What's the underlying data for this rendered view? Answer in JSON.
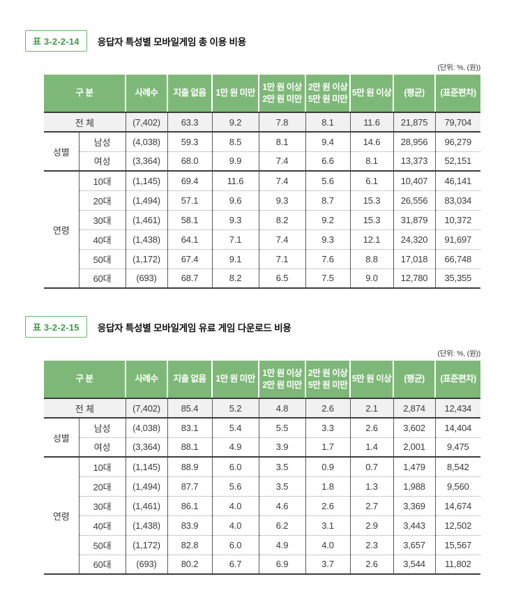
{
  "colors": {
    "header_green": "#7eb878",
    "header_text": "#ffffff",
    "total_bg": "#f1f1f1",
    "tag_border": "#6cb06c",
    "tag_text": "#3f9a48",
    "dark_line": "#3c3c3c",
    "grid_line": "#5a5a5a",
    "dotted_line": "#9a9a9a",
    "body_text": "#3a3a3a",
    "title_text": "#111111"
  },
  "unit_note": "(단위: %, (원))",
  "table_header": {
    "gubun": "구 분",
    "cols": [
      "사례수",
      "지출 없음",
      "1만 원 미만",
      "1만 원 이상\n2만 원 미만",
      "2만 원 이상\n5만 원 미만",
      "5만 원 이상",
      "(평균)",
      "(표준편차)"
    ]
  },
  "tables": [
    {
      "tag": "표 3-2-2-14",
      "title": "응답자 특성별 모바일게임 총 이용 비용",
      "sections": [
        {
          "group": "",
          "rows": [
            {
              "label": "전 체",
              "total": true,
              "cells": [
                "(7,402)",
                "63.3",
                "9.2",
                "7.8",
                "8.1",
                "11.6",
                "21,875",
                "79,704"
              ]
            }
          ]
        },
        {
          "group": "성별",
          "rows": [
            {
              "label": "남성",
              "cells": [
                "(4,038)",
                "59.3",
                "8.5",
                "8.1",
                "9.4",
                "14.6",
                "28,956",
                "96,279"
              ]
            },
            {
              "label": "여성",
              "cells": [
                "(3,364)",
                "68.0",
                "9.9",
                "7.4",
                "6.6",
                "8.1",
                "13,373",
                "52,151"
              ]
            }
          ]
        },
        {
          "group": "연령",
          "rows": [
            {
              "label": "10대",
              "cells": [
                "(1,145)",
                "69.4",
                "11.6",
                "7.4",
                "5.6",
                "6.1",
                "10,407",
                "46,141"
              ]
            },
            {
              "label": "20대",
              "cells": [
                "(1,494)",
                "57.1",
                "9.6",
                "9.3",
                "8.7",
                "15.3",
                "26,556",
                "83,034"
              ]
            },
            {
              "label": "30대",
              "cells": [
                "(1,461)",
                "58.1",
                "9.3",
                "8.2",
                "9.2",
                "15.3",
                "31,879",
                "10,372"
              ]
            },
            {
              "label": "40대",
              "cells": [
                "(1,438)",
                "64.1",
                "7.1",
                "7.4",
                "9.3",
                "12.1",
                "24,320",
                "91,697"
              ]
            },
            {
              "label": "50대",
              "cells": [
                "(1,172)",
                "67.4",
                "9.1",
                "7.1",
                "7.6",
                "8.8",
                "17,018",
                "66,748"
              ]
            },
            {
              "label": "60대",
              "cells": [
                "(693)",
                "68.7",
                "8.2",
                "6.5",
                "7.5",
                "9.0",
                "12,780",
                "35,355"
              ]
            }
          ]
        }
      ]
    },
    {
      "tag": "표 3-2-2-15",
      "title": "응답자 특성별 모바일게임 유료 게임 다운로드 비용",
      "sections": [
        {
          "group": "",
          "rows": [
            {
              "label": "전 체",
              "total": true,
              "cells": [
                "(7,402)",
                "85.4",
                "5.2",
                "4.8",
                "2.6",
                "2.1",
                "2,874",
                "12,434"
              ]
            }
          ]
        },
        {
          "group": "성별",
          "rows": [
            {
              "label": "남성",
              "cells": [
                "(4,038)",
                "83.1",
                "5.4",
                "5.5",
                "3.3",
                "2.6",
                "3,602",
                "14,404"
              ]
            },
            {
              "label": "여성",
              "cells": [
                "(3,364)",
                "88.1",
                "4.9",
                "3.9",
                "1.7",
                "1.4",
                "2,001",
                "9,475"
              ]
            }
          ]
        },
        {
          "group": "연령",
          "rows": [
            {
              "label": "10대",
              "cells": [
                "(1,145)",
                "88.9",
                "6.0",
                "3.5",
                "0.9",
                "0.7",
                "1,479",
                "8,542"
              ]
            },
            {
              "label": "20대",
              "cells": [
                "(1,494)",
                "87.7",
                "5.6",
                "3.5",
                "1.8",
                "1.3",
                "1,988",
                "9,560"
              ]
            },
            {
              "label": "30대",
              "cells": [
                "(1,461)",
                "86.1",
                "4.0",
                "4.6",
                "2.6",
                "2.7",
                "3,369",
                "14,674"
              ]
            },
            {
              "label": "40대",
              "cells": [
                "(1,438)",
                "83.9",
                "4.0",
                "6.2",
                "3.1",
                "2.9",
                "3,443",
                "12,502"
              ]
            },
            {
              "label": "50대",
              "cells": [
                "(1,172)",
                "82.8",
                "6.0",
                "4.9",
                "4.0",
                "2.3",
                "3,657",
                "15,567"
              ]
            },
            {
              "label": "60대",
              "cells": [
                "(693)",
                "80.2",
                "6.7",
                "6.9",
                "3.7",
                "2.6",
                "3,544",
                "11,802"
              ]
            }
          ]
        }
      ]
    }
  ]
}
